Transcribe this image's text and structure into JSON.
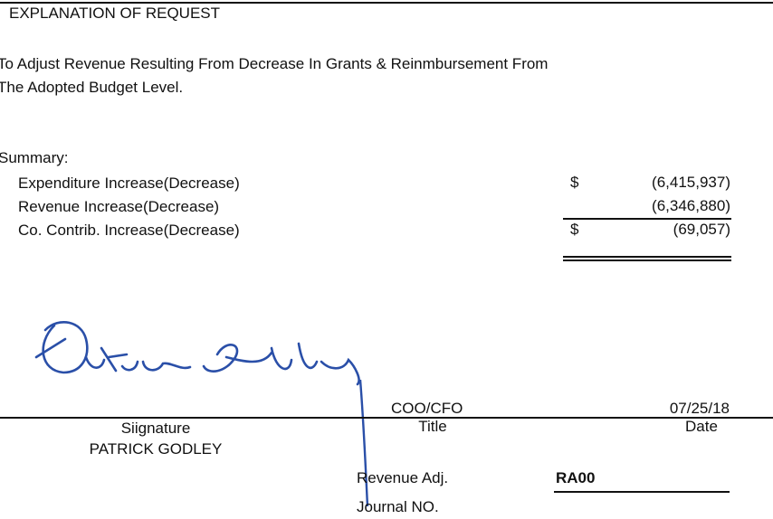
{
  "header": {
    "title": "EXPLANATION OF REQUEST"
  },
  "explanation": [
    "To Adjust Revenue Resulting From Decrease In Grants & Reinmbursement From",
    "The Adopted Budget Level."
  ],
  "summary": {
    "label": "Summary:",
    "items": [
      {
        "label": "Expenditure Increase(Decrease)",
        "currency": "$",
        "value": "(6,415,937)"
      },
      {
        "label": "Revenue Increase(Decrease)",
        "value": "(6,346,880)"
      },
      {
        "label": "Co. Contrib. Increase(Decrease)",
        "currency": "$",
        "value": "(69,057)"
      }
    ]
  },
  "signature_block": {
    "signature_label": "Siignature",
    "name": "PATRICK GODLEY",
    "title": "COO/CFO",
    "title_label": "Title",
    "date": "07/25/18",
    "date_label": "Date"
  },
  "journal": {
    "label_lines": [
      "Revenue Adj.",
      "Journal NO."
    ],
    "number": "RA00"
  }
}
